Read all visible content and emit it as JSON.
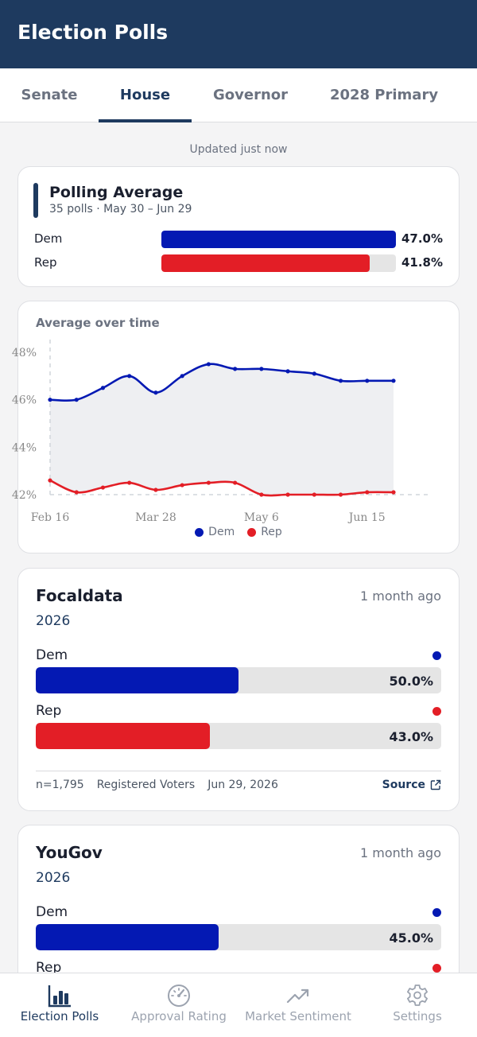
{
  "app": {
    "title": "Election Polls"
  },
  "tabs": [
    {
      "label": "Senate",
      "active": false
    },
    {
      "label": "House",
      "active": true
    },
    {
      "label": "Governor",
      "active": false
    },
    {
      "label": "2028 Primary",
      "active": false
    }
  ],
  "updated_text": "Updated just now",
  "average": {
    "title": "Polling Average",
    "subtitle": "35 polls · May 30 – Jun 29",
    "rows": [
      {
        "label": "Dem",
        "pct_text": "47.0%",
        "value": 47.0,
        "color": "#0419b3"
      },
      {
        "label": "Rep",
        "pct_text": "41.8%",
        "value": 41.8,
        "color": "#e31e26"
      }
    ]
  },
  "chart_data": {
    "type": "line",
    "title": "Average over time",
    "x": [
      "Feb 16",
      "Feb 26",
      "Mar 8",
      "Mar 18",
      "Mar 28",
      "Apr 7",
      "Apr 17",
      "Apr 27",
      "May 6",
      "May 16",
      "May 26",
      "Jun 5",
      "Jun 15",
      "Jun 25"
    ],
    "x_tick_labels": [
      "Feb 16",
      "Mar 28",
      "May 6",
      "Jun 15"
    ],
    "y_tick_labels": [
      "48%",
      "46%",
      "44%",
      "42%"
    ],
    "ylim": [
      42,
      48
    ],
    "series": [
      {
        "name": "Dem",
        "color": "#0419b3",
        "values": [
          46.0,
          46.0,
          46.5,
          47.0,
          46.3,
          47.0,
          47.5,
          47.3,
          47.3,
          47.2,
          47.1,
          46.8,
          46.8,
          46.8
        ]
      },
      {
        "name": "Rep",
        "color": "#e31e26",
        "values": [
          42.6,
          42.1,
          42.3,
          42.5,
          42.2,
          42.4,
          42.5,
          42.5,
          42.0,
          42.0,
          42.0,
          42.0,
          42.1,
          42.1
        ]
      }
    ],
    "legend": "bottom",
    "grid": false
  },
  "polls": [
    {
      "name": "Focaldata",
      "time": "1 month ago",
      "year": "2026",
      "dem": {
        "label": "Dem",
        "pct_text": "50.0%",
        "value": 50.0
      },
      "rep": {
        "label": "Rep",
        "pct_text": "43.0%",
        "value": 43.0
      },
      "sample": "n=1,795",
      "population": "Registered Voters",
      "date": "Jun 29, 2026",
      "source_label": "Source"
    },
    {
      "name": "YouGov",
      "time": "1 month ago",
      "year": "2026",
      "dem": {
        "label": "Dem",
        "pct_text": "45.0%",
        "value": 45.0
      },
      "rep": {
        "label": "Rep"
      }
    }
  ],
  "colors": {
    "header": "#1e3a5f",
    "dem": "#0419b3",
    "rep": "#e31e26"
  },
  "nav": [
    {
      "label": "Election Polls",
      "icon": "bar-chart-icon",
      "active": true
    },
    {
      "label": "Approval Rating",
      "icon": "speedometer-icon",
      "active": false
    },
    {
      "label": "Market Sentiment",
      "icon": "trending-up-icon",
      "active": false
    },
    {
      "label": "Settings",
      "icon": "gear-icon",
      "active": false
    }
  ]
}
